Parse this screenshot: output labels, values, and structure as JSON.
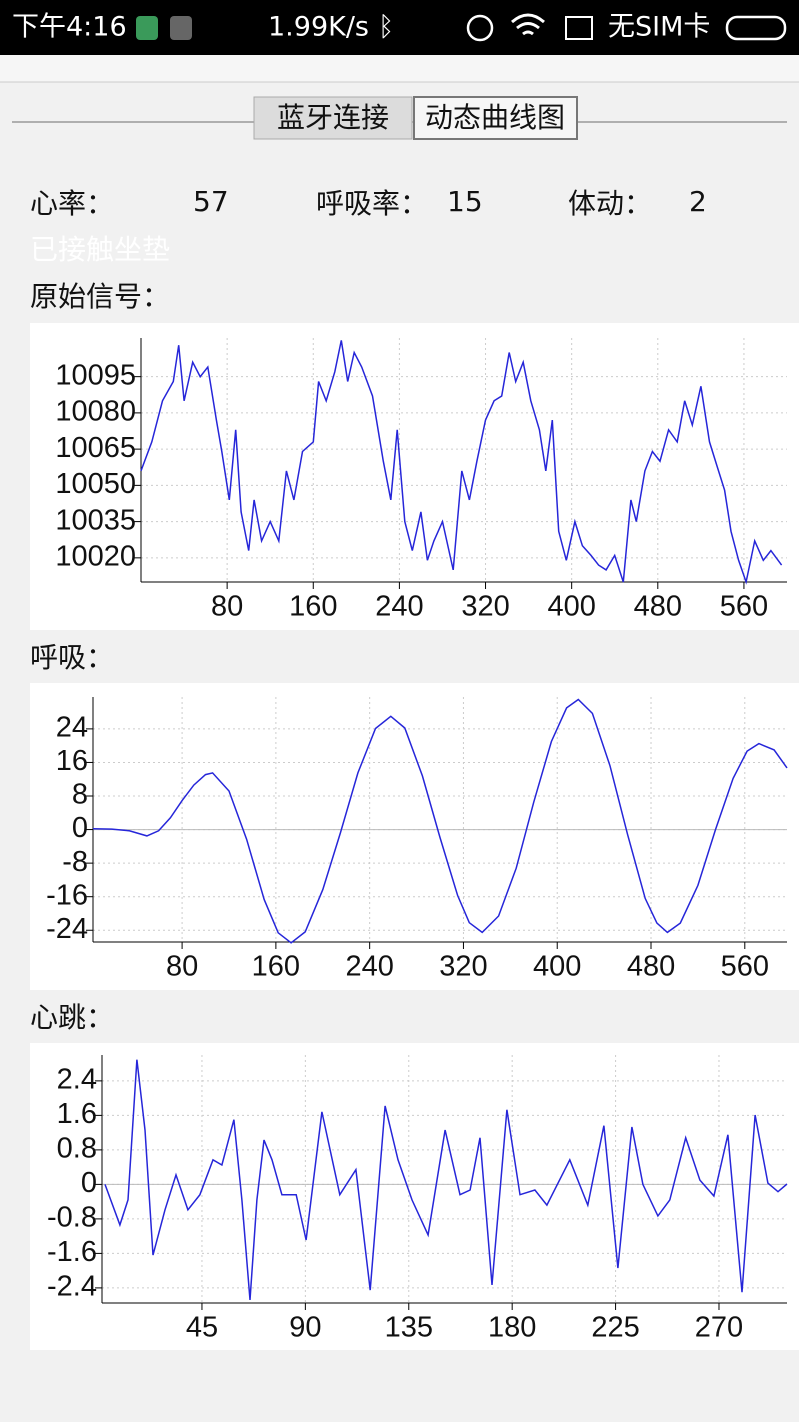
{
  "status_bar": {
    "time": "下午4:16",
    "speed": "1.99K/s",
    "sim": "无SIM卡"
  },
  "tabs": [
    "蓝牙连接",
    "动态曲线图"
  ],
  "stats": {
    "heart_rate_label": "心率：",
    "heart_rate": 57,
    "breath_rate_label": "呼吸率：",
    "breath_rate": 15,
    "movement_label": "体动：",
    "movement": 2
  },
  "status_text": "已接触坐垫",
  "chart_data": [
    {
      "type": "line",
      "title": "原始信号：",
      "color": "#2626d9",
      "grid": true,
      "xlim": [
        0,
        600
      ],
      "ylim": [
        10010,
        10111
      ],
      "xticks": [
        80,
        160,
        240,
        320,
        400,
        480,
        560
      ],
      "yticks": [
        10020,
        10035,
        10050,
        10065,
        10080,
        10095
      ],
      "x": [
        0,
        10,
        20,
        30,
        35,
        40,
        48,
        55,
        62,
        70,
        75,
        82,
        88,
        93,
        100,
        105,
        112,
        120,
        128,
        135,
        142,
        150,
        160,
        165,
        172,
        180,
        186,
        192,
        198,
        205,
        215,
        225,
        232,
        238,
        245,
        252,
        260,
        266,
        272,
        280,
        290,
        298,
        305,
        312,
        320,
        328,
        335,
        342,
        348,
        355,
        362,
        370,
        376,
        382,
        388,
        395,
        403,
        410,
        418,
        425,
        432,
        440,
        448,
        455,
        460,
        468,
        475,
        482,
        490,
        498,
        505,
        512,
        520,
        528,
        535,
        542,
        548,
        555,
        562,
        570,
        578,
        585,
        595
      ],
      "values": [
        10056,
        10068,
        10085,
        10093,
        10108,
        10085,
        10101,
        10095,
        10099,
        10077,
        10064,
        10044,
        10073,
        10039,
        10023,
        10044,
        10027,
        10035,
        10027,
        10056,
        10044,
        10064,
        10068,
        10093,
        10085,
        10097,
        10110,
        10093,
        10105,
        10099,
        10087,
        10060,
        10044,
        10073,
        10035,
        10023,
        10039,
        10019,
        10027,
        10035,
        10015,
        10056,
        10044,
        10060,
        10077,
        10085,
        10087,
        10105,
        10093,
        10101,
        10085,
        10073,
        10056,
        10077,
        10031,
        10019,
        10035,
        10025,
        10021,
        10017,
        10015,
        10021,
        10010,
        10044,
        10035,
        10056,
        10064,
        10060,
        10073,
        10068,
        10085,
        10075,
        10091,
        10068,
        10058,
        10048,
        10031,
        10019,
        10010,
        10027,
        10019,
        10023,
        10017
      ]
    },
    {
      "type": "line",
      "title": "呼吸：",
      "color": "#2626d9",
      "grid": true,
      "zero_line": true,
      "xlim": [
        4,
        596
      ],
      "ylim": [
        -26.8,
        31.6
      ],
      "xticks": [
        80,
        160,
        240,
        320,
        400,
        480,
        560
      ],
      "yticks": [
        -24,
        -16,
        -8,
        0,
        8,
        16,
        24
      ],
      "x": [
        4,
        20,
        35,
        50,
        60,
        70,
        80,
        90,
        100,
        106,
        120,
        135,
        150,
        162,
        173,
        185,
        200,
        215,
        230,
        245,
        258,
        270,
        285,
        300,
        315,
        325,
        336,
        350,
        365,
        380,
        395,
        408,
        418,
        430,
        445,
        460,
        475,
        485,
        494,
        505,
        520,
        535,
        550,
        562,
        572,
        585,
        596
      ],
      "values": [
        0.2,
        0.1,
        -0.3,
        -1.5,
        -0.3,
        2.8,
        6.9,
        10.6,
        13.1,
        13.5,
        9.2,
        -2.3,
        -16.7,
        -24.6,
        -27,
        -24.4,
        -14.3,
        -0.8,
        13.5,
        24.1,
        27,
        24.2,
        12.8,
        -1.9,
        -15.7,
        -22.2,
        -24.5,
        -20.6,
        -9.2,
        6.6,
        21.0,
        29.0,
        31,
        27.7,
        15.2,
        -1.2,
        -16.4,
        -22.3,
        -24.5,
        -22.3,
        -13.3,
        0.0,
        12.2,
        18.7,
        20.5,
        19,
        14.7
      ]
    },
    {
      "type": "line",
      "title": "心跳：",
      "color": "#2626d9",
      "grid": true,
      "zero_line": true,
      "xlim": [
        1.5,
        299.6
      ],
      "ylim": [
        -2.75,
        3.0
      ],
      "xticks": [
        45,
        90,
        135,
        180,
        225,
        270
      ],
      "yticks": [
        -2.4,
        -1.6,
        -0.8,
        0,
        0.8,
        1.6,
        2.4
      ],
      "x": [
        2.8,
        9.3,
        12.8,
        16.7,
        20.2,
        23.7,
        28.9,
        33.7,
        38.9,
        44.1,
        49.8,
        53.7,
        58.9,
        62.4,
        65.9,
        68.9,
        72,
        75.5,
        79.8,
        86,
        90.3,
        97.2,
        105,
        112,
        118.2,
        124.7,
        130.3,
        136.4,
        143.4,
        150.8,
        157.3,
        161.7,
        166,
        171.2,
        177.7,
        183.4,
        189.9,
        195.1,
        205.1,
        212.9,
        219.9,
        226,
        232.1,
        236.9,
        243.4,
        248.6,
        255.5,
        261.7,
        267.8,
        273.9,
        280,
        285.7,
        291.3,
        295.7,
        299.6
      ],
      "values": [
        0,
        -0.94,
        -0.36,
        2.89,
        1.26,
        -1.64,
        -0.59,
        0.22,
        -0.59,
        -0.24,
        0.57,
        0.45,
        1.5,
        -0.36,
        -2.68,
        -0.36,
        1.03,
        0.57,
        -0.24,
        -0.24,
        -1.29,
        1.68,
        -0.24,
        0.34,
        -2.45,
        1.82,
        0.57,
        -0.36,
        -1.17,
        1.26,
        -0.24,
        -0.13,
        1.08,
        -2.33,
        1.73,
        -0.24,
        -0.13,
        -0.48,
        0.57,
        -0.48,
        1.36,
        -1.94,
        1.33,
        0,
        -0.73,
        -0.36,
        1.08,
        0.1,
        -0.27,
        1.15,
        -2.5,
        1.61,
        0.03,
        -0.17,
        0.01
      ]
    }
  ]
}
